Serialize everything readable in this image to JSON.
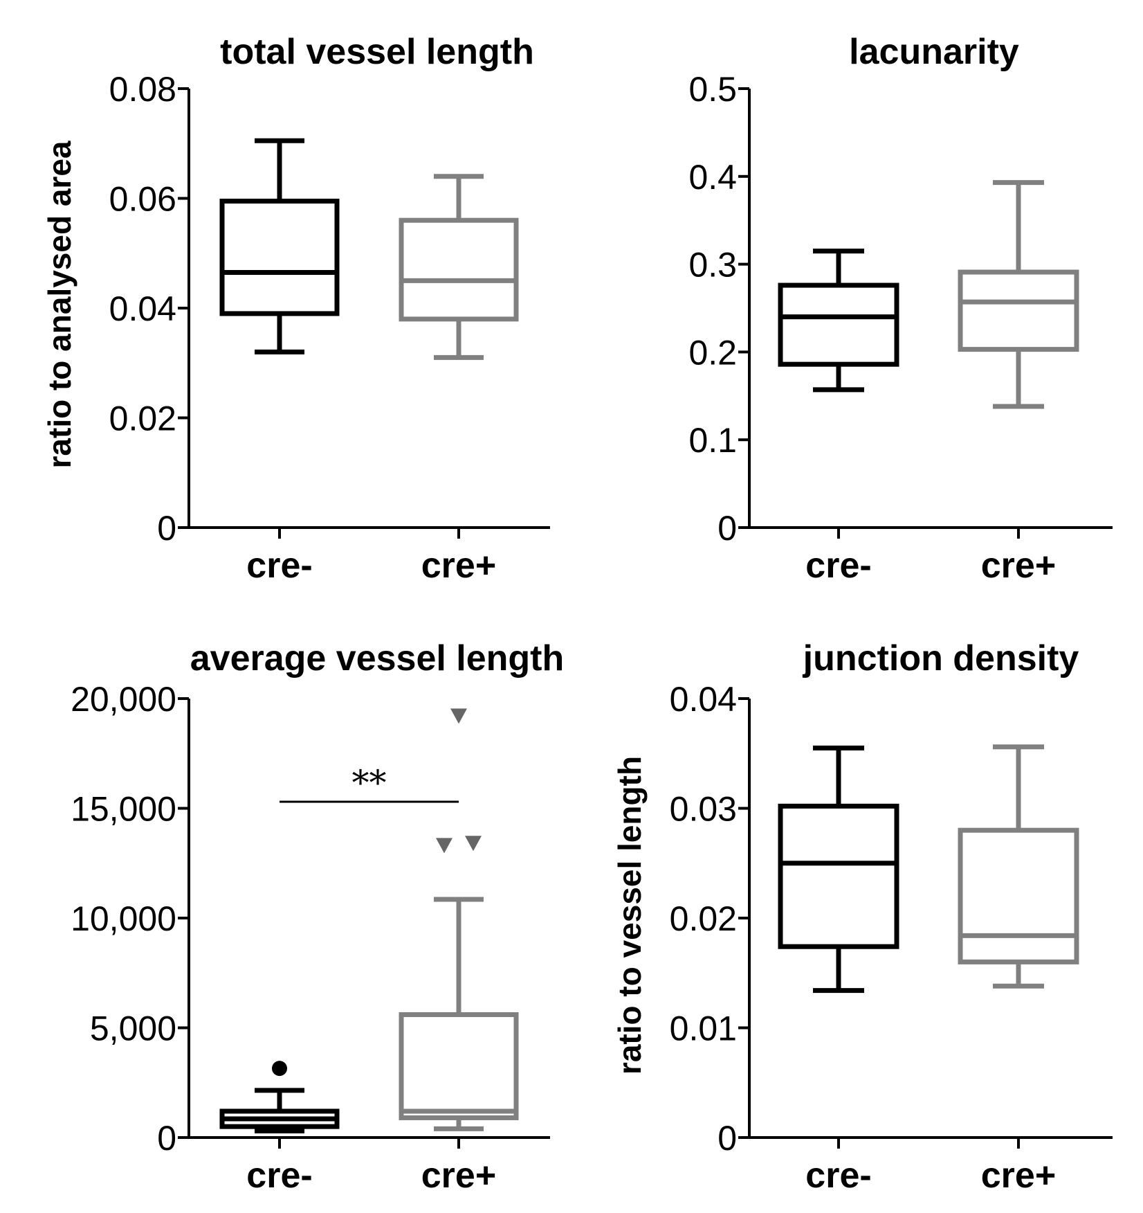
{
  "chart_data": [
    {
      "type": "box",
      "title": "total vessel length",
      "ylabel": "ratio to analysed area",
      "ylim": [
        0,
        0.08
      ],
      "yticks": [
        0,
        0.02,
        0.04,
        0.06,
        0.08
      ],
      "ytick_labels": [
        "0",
        "0.02",
        "0.04",
        "0.06",
        "0.08"
      ],
      "categories": [
        "cre-",
        "cre+"
      ],
      "series": [
        {
          "category": "cre-",
          "color": "#000000",
          "min": 0.032,
          "q1": 0.039,
          "median": 0.0465,
          "q3": 0.0595,
          "max": 0.0705,
          "outliers": []
        },
        {
          "category": "cre+",
          "color": "#808080",
          "min": 0.031,
          "q1": 0.038,
          "median": 0.045,
          "q3": 0.056,
          "max": 0.064,
          "outliers": []
        }
      ]
    },
    {
      "type": "box",
      "title": "lacunarity",
      "ylabel": "",
      "ylim": [
        0,
        0.5
      ],
      "yticks": [
        0,
        0.1,
        0.2,
        0.3,
        0.4,
        0.5
      ],
      "ytick_labels": [
        "0",
        "0.1",
        "0.2",
        "0.3",
        "0.4",
        "0.5"
      ],
      "categories": [
        "cre-",
        "cre+"
      ],
      "series": [
        {
          "category": "cre-",
          "color": "#000000",
          "min": 0.157,
          "q1": 0.186,
          "median": 0.24,
          "q3": 0.276,
          "max": 0.315,
          "outliers": []
        },
        {
          "category": "cre+",
          "color": "#808080",
          "min": 0.138,
          "q1": 0.203,
          "median": 0.257,
          "q3": 0.291,
          "max": 0.393,
          "outliers": []
        }
      ]
    },
    {
      "type": "box",
      "title": "average vessel length",
      "ylabel": "",
      "ylim": [
        0,
        20000
      ],
      "yticks": [
        0,
        5000,
        10000,
        15000,
        20000
      ],
      "ytick_labels": [
        "0",
        "5,000",
        "10,000",
        "15,000",
        "20,000"
      ],
      "categories": [
        "cre-",
        "cre+"
      ],
      "series": [
        {
          "category": "cre-",
          "color": "#000000",
          "min": 300,
          "q1": 500,
          "median": 850,
          "q3": 1200,
          "max": 2150,
          "outliers": [
            {
              "value": 3150,
              "marker": "circle"
            }
          ]
        },
        {
          "category": "cre+",
          "color": "#808080",
          "min": 400,
          "q1": 900,
          "median": 1200,
          "q3": 5600,
          "max": 10850,
          "outliers": [
            {
              "value": 19200,
              "marker": "triangle-down",
              "offset": 0
            },
            {
              "value": 13300,
              "marker": "triangle-down",
              "offset": -1
            },
            {
              "value": 13400,
              "marker": "triangle-down",
              "offset": 1
            }
          ]
        }
      ],
      "significance": {
        "label": "**",
        "from": "cre-",
        "to": "cre+",
        "y": 15300
      }
    },
    {
      "type": "box",
      "title": "junction density",
      "ylabel": "ratio to vessel length",
      "ylim": [
        0,
        0.04
      ],
      "yticks": [
        0,
        0.01,
        0.02,
        0.03,
        0.04
      ],
      "ytick_labels": [
        "0",
        "0.01",
        "0.02",
        "0.03",
        "0.04"
      ],
      "categories": [
        "cre-",
        "cre+"
      ],
      "series": [
        {
          "category": "cre-",
          "color": "#000000",
          "min": 0.0134,
          "q1": 0.0174,
          "median": 0.025,
          "q3": 0.0302,
          "max": 0.0355,
          "outliers": []
        },
        {
          "category": "cre+",
          "color": "#808080",
          "min": 0.0138,
          "q1": 0.016,
          "median": 0.0184,
          "q3": 0.028,
          "max": 0.0356,
          "outliers": []
        }
      ]
    }
  ]
}
